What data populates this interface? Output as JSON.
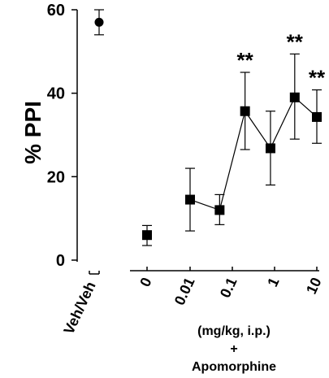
{
  "chart_data": {
    "type": "scatter",
    "ylabel": "% PPI",
    "ylim": [
      0,
      60
    ],
    "yticks": [
      0,
      20,
      40,
      60
    ],
    "xlabel_lines": [
      "(mg/kg, i.p.)",
      "+",
      "Apomorphine"
    ],
    "control": {
      "label": "Veh/Veh",
      "value": 57,
      "error_low": 54,
      "error_high": 60,
      "marker": "circle"
    },
    "series": [
      {
        "marker": "square",
        "x": [
          0,
          0.01,
          0.05,
          0.2,
          0.8,
          3,
          10
        ],
        "values": [
          6,
          14.5,
          12,
          35.7,
          26.8,
          39,
          34.3
        ],
        "error_low": [
          3.5,
          7,
          8.5,
          26.5,
          18,
          29,
          28
        ],
        "error_high": [
          8.3,
          22,
          15.7,
          45,
          35.7,
          49.4,
          40.8
        ],
        "significance": [
          "",
          "",
          "",
          "**",
          "",
          "**",
          "**"
        ]
      }
    ],
    "x_tick_labels": [
      "0",
      "0.01",
      "0.1",
      "1",
      "10"
    ],
    "x_tick_positions": [
      0,
      0.01,
      0.1,
      1,
      10
    ],
    "colors": {
      "markers": "#000000",
      "lines": "#000000"
    }
  }
}
